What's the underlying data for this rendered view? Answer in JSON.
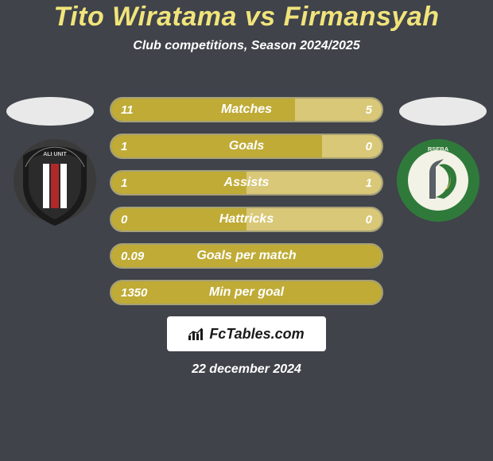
{
  "title": "Tito Wiratama vs Firmansyah",
  "subtitle": "Club competitions, Season 2024/2025",
  "date": "22 december 2024",
  "branding": {
    "text": "FcTables.com"
  },
  "colors": {
    "background": "#40434a",
    "title": "#f0e47b",
    "subtitle_text": "#ffffff",
    "body_text": "#ffffff",
    "branding_bg": "#ffffff",
    "branding_text": "#1a1a1a",
    "ellipse": "#e9e9e9",
    "row_bg": "#7a7c81",
    "row_border": "#a7a178",
    "player1_bar": "#bfab36",
    "player2_bar": "#d9c878"
  },
  "stats": [
    {
      "label": "Matches",
      "p1_val": "11",
      "p2_val": "5",
      "p1_pct": 68,
      "p2_pct": 32
    },
    {
      "label": "Goals",
      "p1_val": "1",
      "p2_val": "0",
      "p1_pct": 78,
      "p2_pct": 22
    },
    {
      "label": "Assists",
      "p1_val": "1",
      "p2_val": "1",
      "p1_pct": 50,
      "p2_pct": 50
    },
    {
      "label": "Hattricks",
      "p1_val": "0",
      "p2_val": "0",
      "p1_pct": 50,
      "p2_pct": 50
    },
    {
      "label": "Goals per match",
      "p1_val": "0.09",
      "p2_val": "",
      "p1_pct": 100,
      "p2_pct": 0
    },
    {
      "label": "Min per goal",
      "p1_val": "1350",
      "p2_val": "",
      "p1_pct": 100,
      "p2_pct": 0
    }
  ],
  "crest_left": {
    "shield_outer": "#1a1a1a",
    "shield_inner": "#2b2b2b",
    "accent_red": "#b02828",
    "accent_white": "#ffffff",
    "ring": "#3a3a3a",
    "ring_text": "#c9c9c9"
  },
  "crest_right": {
    "circle_outer": "#2f7a3a",
    "circle_inner": "#f2f2e6",
    "accent_green": "#2f7a3a",
    "accent_gold": "#c9b84a",
    "ring_text": "#f2f2e6"
  }
}
